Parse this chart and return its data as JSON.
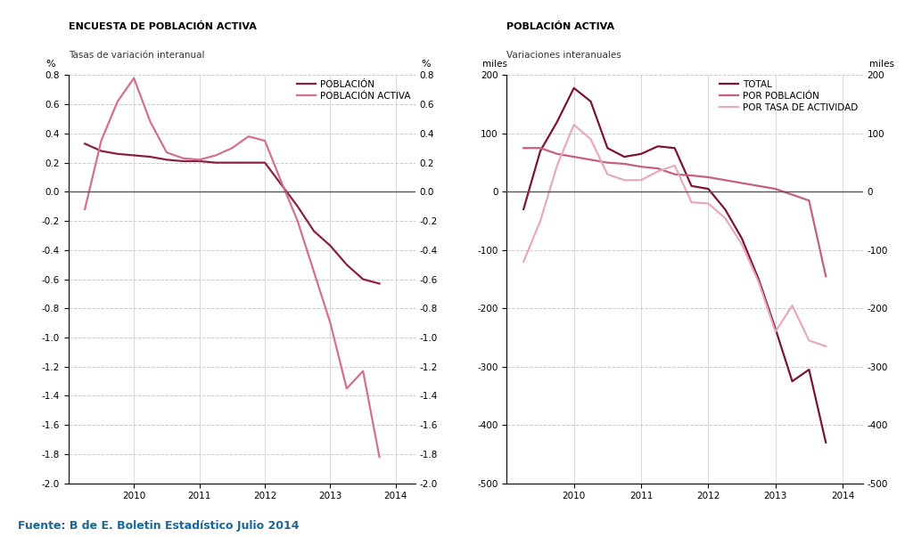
{
  "left_title1": "ENCUESTA DE POBLACIÓN ACTIVA",
  "left_title2": "Tasas de variación interanual",
  "right_title1": "POBLACIÓN ACTIVA",
  "right_title2": "Variaciones interanuales",
  "source_text": "Fuente: B de E. Boletin Estadístico Julio 2014",
  "left_ylim": [
    -2.0,
    0.8
  ],
  "right_ylim": [
    -500,
    200
  ],
  "left_yticks": [
    -2.0,
    -1.8,
    -1.6,
    -1.4,
    -1.2,
    -1.0,
    -0.8,
    -0.6,
    -0.4,
    -0.2,
    0.0,
    0.2,
    0.4,
    0.6,
    0.8
  ],
  "right_yticks": [
    -500,
    -400,
    -300,
    -200,
    -100,
    0,
    100,
    200
  ],
  "color_poblacion": "#8B2040",
  "color_activa": "#D4708A",
  "color_total": "#7B1530",
  "color_por_poblacion": "#C4607A",
  "color_tasa": "#E8AABB",
  "legend_left": [
    "POBLACIÓN",
    "POBLACIÓN ACTIVA"
  ],
  "legend_right": [
    "TOTAL",
    "POR POBLACIÓN",
    "POR TASA DE ACTIVIDAD"
  ],
  "left_x": [
    2009.25,
    2009.5,
    2009.75,
    2010.0,
    2010.25,
    2010.5,
    2010.75,
    2011.0,
    2011.25,
    2011.5,
    2011.75,
    2012.0,
    2012.25,
    2012.5,
    2012.75,
    2013.0,
    2013.25,
    2013.5,
    2013.75
  ],
  "poblacion": [
    0.33,
    0.28,
    0.26,
    0.25,
    0.24,
    0.22,
    0.21,
    0.21,
    0.2,
    0.2,
    0.2,
    0.2,
    0.05,
    -0.1,
    -0.27,
    -0.37,
    -0.5,
    -0.6,
    -0.63
  ],
  "activa": [
    -0.12,
    0.35,
    0.62,
    0.78,
    0.48,
    0.27,
    0.23,
    0.22,
    0.25,
    0.3,
    0.38,
    0.35,
    0.07,
    -0.2,
    -0.55,
    -0.9,
    -1.35,
    -1.23,
    -1.82
  ],
  "right_x": [
    2009.25,
    2009.5,
    2009.75,
    2010.0,
    2010.25,
    2010.5,
    2010.75,
    2011.0,
    2011.25,
    2011.5,
    2011.75,
    2012.0,
    2012.25,
    2012.5,
    2012.75,
    2013.0,
    2013.25,
    2013.5,
    2013.75
  ],
  "total": [
    -30,
    70,
    120,
    178,
    155,
    75,
    60,
    65,
    78,
    75,
    10,
    5,
    -30,
    -80,
    -150,
    -235,
    -325,
    -305,
    -430
  ],
  "por_poblacion": [
    75,
    75,
    65,
    60,
    55,
    50,
    48,
    43,
    40,
    30,
    28,
    25,
    20,
    15,
    10,
    5,
    -5,
    -15,
    -145
  ],
  "por_tasa": [
    -120,
    -50,
    45,
    115,
    90,
    30,
    20,
    20,
    35,
    45,
    -18,
    -20,
    -45,
    -90,
    -155,
    -240,
    -195,
    -255,
    -265
  ]
}
